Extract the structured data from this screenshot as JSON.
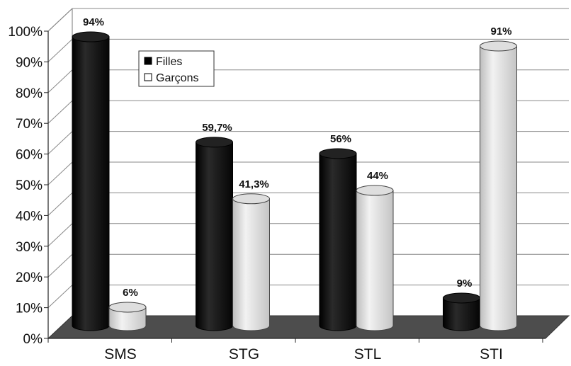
{
  "chart_data": {
    "type": "bar",
    "categories": [
      "SMS",
      "STG",
      "STL",
      "STI"
    ],
    "series": [
      {
        "name": "Filles",
        "values": [
          94,
          59.7,
          56,
          9
        ],
        "labels": [
          "94%",
          "59,7%",
          "56%",
          "9%"
        ],
        "color": "#1a1a1a"
      },
      {
        "name": "Garçons",
        "values": [
          6,
          41.3,
          44,
          91
        ],
        "labels": [
          "6%",
          "41,3%",
          "44%",
          "91%"
        ],
        "color": "#e4e4e4"
      }
    ],
    "yticks": [
      "0%",
      "10%",
      "20%",
      "30%",
      "40%",
      "50%",
      "60%",
      "70%",
      "80%",
      "90%",
      "100%"
    ],
    "ylim": [
      0,
      100
    ],
    "grid": true,
    "legend": "top-left",
    "style": "3d-cylinder",
    "title": "",
    "xlabel": "",
    "ylabel": ""
  }
}
